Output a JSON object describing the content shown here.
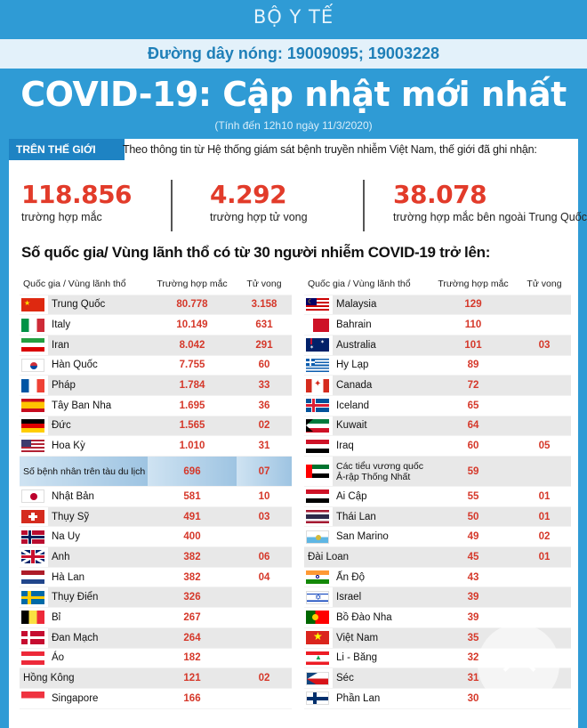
{
  "brand": "BỘ Y TẾ",
  "hotline": "Đường dây nóng: 19009095; 19003228",
  "title": "COVID-19: Cập nhật mới nhất",
  "as_of": "(Tính đến 12h10 ngày 11/3/2020)",
  "world_label": "TRÊN THẾ GIỚI",
  "intro": "Theo thông tin từ Hệ thống giám sát bệnh truyền nhiễm Việt Nam, thế giới đã ghi nhận:",
  "stats": [
    {
      "value": "118.856",
      "label": "trường hợp mắc"
    },
    {
      "value": "4.292",
      "label": "trường hợp tử vong"
    },
    {
      "value": "38.078",
      "label": "trường hợp mắc bên ngoài Trung Quốc"
    }
  ],
  "section_heading": "Số quốc gia/ Vùng lãnh thổ có từ 30 người  nhiễm COVID-19 trở lên:",
  "table_headers": {
    "country": "Quốc gia / Vùng lãnh thổ",
    "cases": "Trường hợp mắc",
    "deaths": "Tử vong"
  },
  "left_rows": [
    {
      "name": "Trung Quốc",
      "cases": "80.778",
      "deaths": "3.158",
      "flag": "cn-flag-icon"
    },
    {
      "name": "Italy",
      "cases": "10.149",
      "deaths": "631",
      "flag": "it-flag-icon"
    },
    {
      "name": "Iran",
      "cases": "8.042",
      "deaths": "291",
      "flag": "ir-flag-icon"
    },
    {
      "name": "Hàn Quốc",
      "cases": "7.755",
      "deaths": "60",
      "flag": "kr-flag-icon"
    },
    {
      "name": "Pháp",
      "cases": "1.784",
      "deaths": "33",
      "flag": "fr-flag-icon"
    },
    {
      "name": "Tây Ban Nha",
      "cases": "1.695",
      "deaths": "36",
      "flag": "es-flag-icon"
    },
    {
      "name": "Đức",
      "cases": "1.565",
      "deaths": "02",
      "flag": "de-flag-icon"
    },
    {
      "name": "Hoa Kỳ",
      "cases": "1.010",
      "deaths": "31",
      "flag": "us-flag-icon"
    },
    {
      "name": "Số bệnh nhân trên tàu du lịch",
      "cases": "696",
      "deaths": "07",
      "flag": "ship-icon"
    },
    {
      "name": "Nhật Bản",
      "cases": "581",
      "deaths": "10",
      "flag": "jp-flag-icon"
    },
    {
      "name": "Thụy Sỹ",
      "cases": "491",
      "deaths": "03",
      "flag": "ch-flag-icon"
    },
    {
      "name": "Na Uy",
      "cases": "400",
      "deaths": "",
      "flag": "no-flag-icon"
    },
    {
      "name": "Anh",
      "cases": "382",
      "deaths": "06",
      "flag": "gb-flag-icon"
    },
    {
      "name": "Hà Lan",
      "cases": "382",
      "deaths": "04",
      "flag": "nl-flag-icon"
    },
    {
      "name": "Thụy Điển",
      "cases": "326",
      "deaths": "",
      "flag": "se-flag-icon"
    },
    {
      "name": "Bỉ",
      "cases": "267",
      "deaths": "",
      "flag": "be-flag-icon"
    },
    {
      "name": "Đan Mạch",
      "cases": "264",
      "deaths": "",
      "flag": "dk-flag-icon"
    },
    {
      "name": "Áo",
      "cases": "182",
      "deaths": "",
      "flag": "at-flag-icon"
    },
    {
      "name": "Hồng Kông",
      "cases": "121",
      "deaths": "02",
      "flag": ""
    },
    {
      "name": "Singapore",
      "cases": "166",
      "deaths": "",
      "flag": "sg-flag-icon"
    }
  ],
  "right_rows": [
    {
      "name": "Malaysia",
      "cases": "129",
      "deaths": "",
      "flag": "my-flag-icon"
    },
    {
      "name": "Bahrain",
      "cases": "110",
      "deaths": "",
      "flag": "bh-flag-icon"
    },
    {
      "name": "Australia",
      "cases": "101",
      "deaths": "03",
      "flag": "au-flag-icon"
    },
    {
      "name": "Hy Lạp",
      "cases": "89",
      "deaths": "",
      "flag": "gr-flag-icon"
    },
    {
      "name": "Canada",
      "cases": "72",
      "deaths": "",
      "flag": "ca-flag-icon"
    },
    {
      "name": "Iceland",
      "cases": "65",
      "deaths": "",
      "flag": "is-flag-icon"
    },
    {
      "name": "Kuwait",
      "cases": "64",
      "deaths": "",
      "flag": "kw-flag-icon"
    },
    {
      "name": "Iraq",
      "cases": "60",
      "deaths": "05",
      "flag": "iq-flag-icon"
    },
    {
      "name": "Các tiểu vương quốc Ả-rập Thống Nhất",
      "cases": "59",
      "deaths": "",
      "flag": "ae-flag-icon"
    },
    {
      "name": "Ai Cập",
      "cases": "55",
      "deaths": "01",
      "flag": "eg-flag-icon"
    },
    {
      "name": "Thái Lan",
      "cases": "50",
      "deaths": "01",
      "flag": "th-flag-icon"
    },
    {
      "name": "San Marino",
      "cases": "49",
      "deaths": "02",
      "flag": "sm-flag-icon"
    },
    {
      "name": "Đài Loan",
      "cases": "45",
      "deaths": "01",
      "flag": ""
    },
    {
      "name": "Ấn Độ",
      "cases": "43",
      "deaths": "",
      "flag": "in-flag-icon"
    },
    {
      "name": "Israel",
      "cases": "39",
      "deaths": "",
      "flag": "il-flag-icon"
    },
    {
      "name": "Bồ Đào Nha",
      "cases": "39",
      "deaths": "",
      "flag": "pt-flag-icon"
    },
    {
      "name": "Việt Nam",
      "cases": "35",
      "deaths": "",
      "flag": "vn-flag-icon"
    },
    {
      "name": "Li - Băng",
      "cases": "32",
      "deaths": "",
      "flag": "lb-flag-icon"
    },
    {
      "name": "Séc",
      "cases": "31",
      "deaths": "",
      "flag": "cz-flag-icon"
    },
    {
      "name": "Phần Lan",
      "cases": "30",
      "deaths": "",
      "flag": "fi-flag-icon"
    }
  ],
  "scroll_top_icon": "chevron-up-icon",
  "colors": {
    "background": "#2f9bd5",
    "accent_red": "#e23b2a",
    "tag_blue": "#1e83c3"
  }
}
